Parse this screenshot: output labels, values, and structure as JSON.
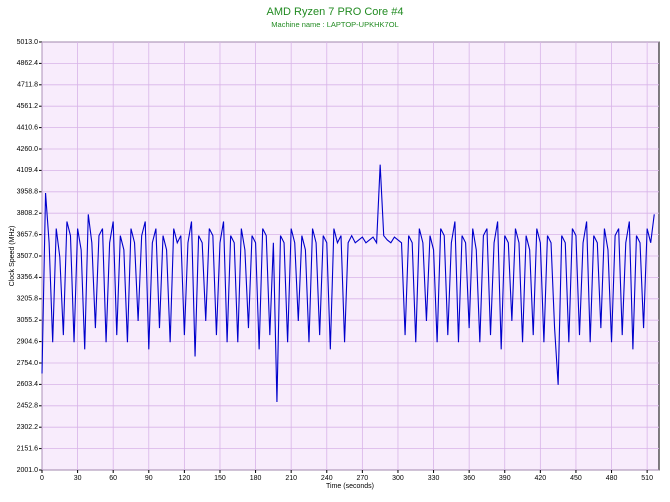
{
  "chart_data": {
    "type": "line",
    "title": "AMD Ryzen 7 PRO Core #4",
    "subtitle": "Machine name : LAPTOP-UPKHK7OL",
    "x_label": "Time (seconds)",
    "y_label": "Clock Speed (MHz)",
    "grid": true,
    "xlim": [
      0,
      520
    ],
    "xticks": [
      0,
      30,
      60,
      90,
      120,
      150,
      180,
      210,
      240,
      270,
      300,
      330,
      360,
      390,
      420,
      450,
      480,
      510
    ],
    "ylim": [
      2001,
      5013
    ],
    "yticks": [
      {
        "value": 2001,
        "label": "2001.0"
      },
      2151.6,
      2302.2,
      2452.8,
      2603.4,
      {
        "value": 2754,
        "label": "2754.0"
      },
      2904.6,
      3055.2,
      3205.8,
      3356.4,
      {
        "value": 3507,
        "label": "3507.0"
      },
      3657.6,
      3808.2,
      3958.8,
      4109.4,
      {
        "value": 4260,
        "label": "4260.0"
      },
      4410.6,
      4561.2,
      4711.8,
      4862.4,
      {
        "value": 5013,
        "label": "5013.0"
      }
    ],
    "series": [
      {
        "color": "#0000cc",
        "x": [
          0,
          3,
          6,
          9,
          12,
          15,
          18,
          21,
          24,
          27,
          30,
          33,
          36,
          39,
          42,
          45,
          48,
          51,
          54,
          57,
          60,
          63,
          66,
          69,
          72,
          75,
          78,
          81,
          84,
          87,
          90,
          93,
          96,
          99,
          102,
          105,
          108,
          111,
          114,
          117,
          120,
          123,
          126,
          129,
          132,
          135,
          138,
          141,
          144,
          147,
          150,
          153,
          156,
          159,
          162,
          165,
          168,
          171,
          174,
          177,
          180,
          183,
          186,
          189,
          192,
          195,
          198,
          201,
          204,
          207,
          210,
          213,
          216,
          219,
          222,
          225,
          228,
          231,
          234,
          237,
          240,
          243,
          246,
          249,
          252,
          255,
          258,
          261,
          264,
          267,
          270,
          273,
          276,
          279,
          282,
          285,
          288,
          291,
          294,
          297,
          300,
          303,
          306,
          309,
          312,
          315,
          318,
          321,
          324,
          327,
          330,
          333,
          336,
          339,
          342,
          345,
          348,
          351,
          354,
          357,
          360,
          363,
          366,
          369,
          372,
          375,
          378,
          381,
          384,
          387,
          390,
          393,
          396,
          399,
          402,
          405,
          408,
          411,
          414,
          417,
          420,
          423,
          426,
          429,
          432,
          435,
          438,
          441,
          444,
          447,
          450,
          453,
          456,
          459,
          462,
          465,
          468,
          471,
          474,
          477,
          480,
          483,
          486,
          489,
          492,
          495,
          498,
          501,
          504,
          507,
          510,
          513,
          516
        ],
        "values": [
          2680,
          3950,
          3600,
          2900,
          3700,
          3500,
          2950,
          3750,
          3650,
          2900,
          3700,
          3550,
          2850,
          3800,
          3600,
          3000,
          3650,
          3700,
          2900,
          3600,
          3750,
          2950,
          3650,
          3550,
          2900,
          3700,
          3600,
          3050,
          3650,
          3750,
          2850,
          3600,
          3700,
          3000,
          3650,
          3550,
          2900,
          3700,
          3600,
          3650,
          2950,
          3600,
          3750,
          2800,
          3650,
          3600,
          3050,
          3700,
          3650,
          2950,
          3600,
          3750,
          2900,
          3650,
          3600,
          2900,
          3700,
          3550,
          3000,
          3650,
          3600,
          2850,
          3700,
          3650,
          2950,
          3600,
          2480,
          3650,
          3600,
          2900,
          3700,
          3600,
          3050,
          3650,
          3550,
          2900,
          3700,
          3600,
          2950,
          3650,
          3600,
          2850,
          3700,
          3600,
          3650,
          2900,
          3600,
          3650,
          3600,
          3620,
          3640,
          3600,
          3620,
          3640,
          3600,
          4150,
          3650,
          3620,
          3600,
          3640,
          3620,
          3600,
          2950,
          3650,
          3600,
          2900,
          3700,
          3600,
          3050,
          3650,
          3550,
          2900,
          3700,
          3650,
          2950,
          3600,
          3750,
          2900,
          3650,
          3600,
          3000,
          3700,
          3550,
          2900,
          3650,
          3700,
          2950,
          3600,
          3750,
          2850,
          3650,
          3600,
          3050,
          3700,
          3600,
          2900,
          3650,
          3550,
          2950,
          3700,
          3600,
          2900,
          3650,
          3600,
          3000,
          2600,
          3650,
          3600,
          2900,
          3700,
          3650,
          2950,
          3600,
          3750,
          2900,
          3650,
          3600,
          3000,
          3700,
          3550,
          2900,
          3650,
          3700,
          2950,
          3600,
          3750,
          2850,
          3650,
          3600,
          3000,
          3700,
          3600,
          3800
        ]
      }
    ]
  }
}
